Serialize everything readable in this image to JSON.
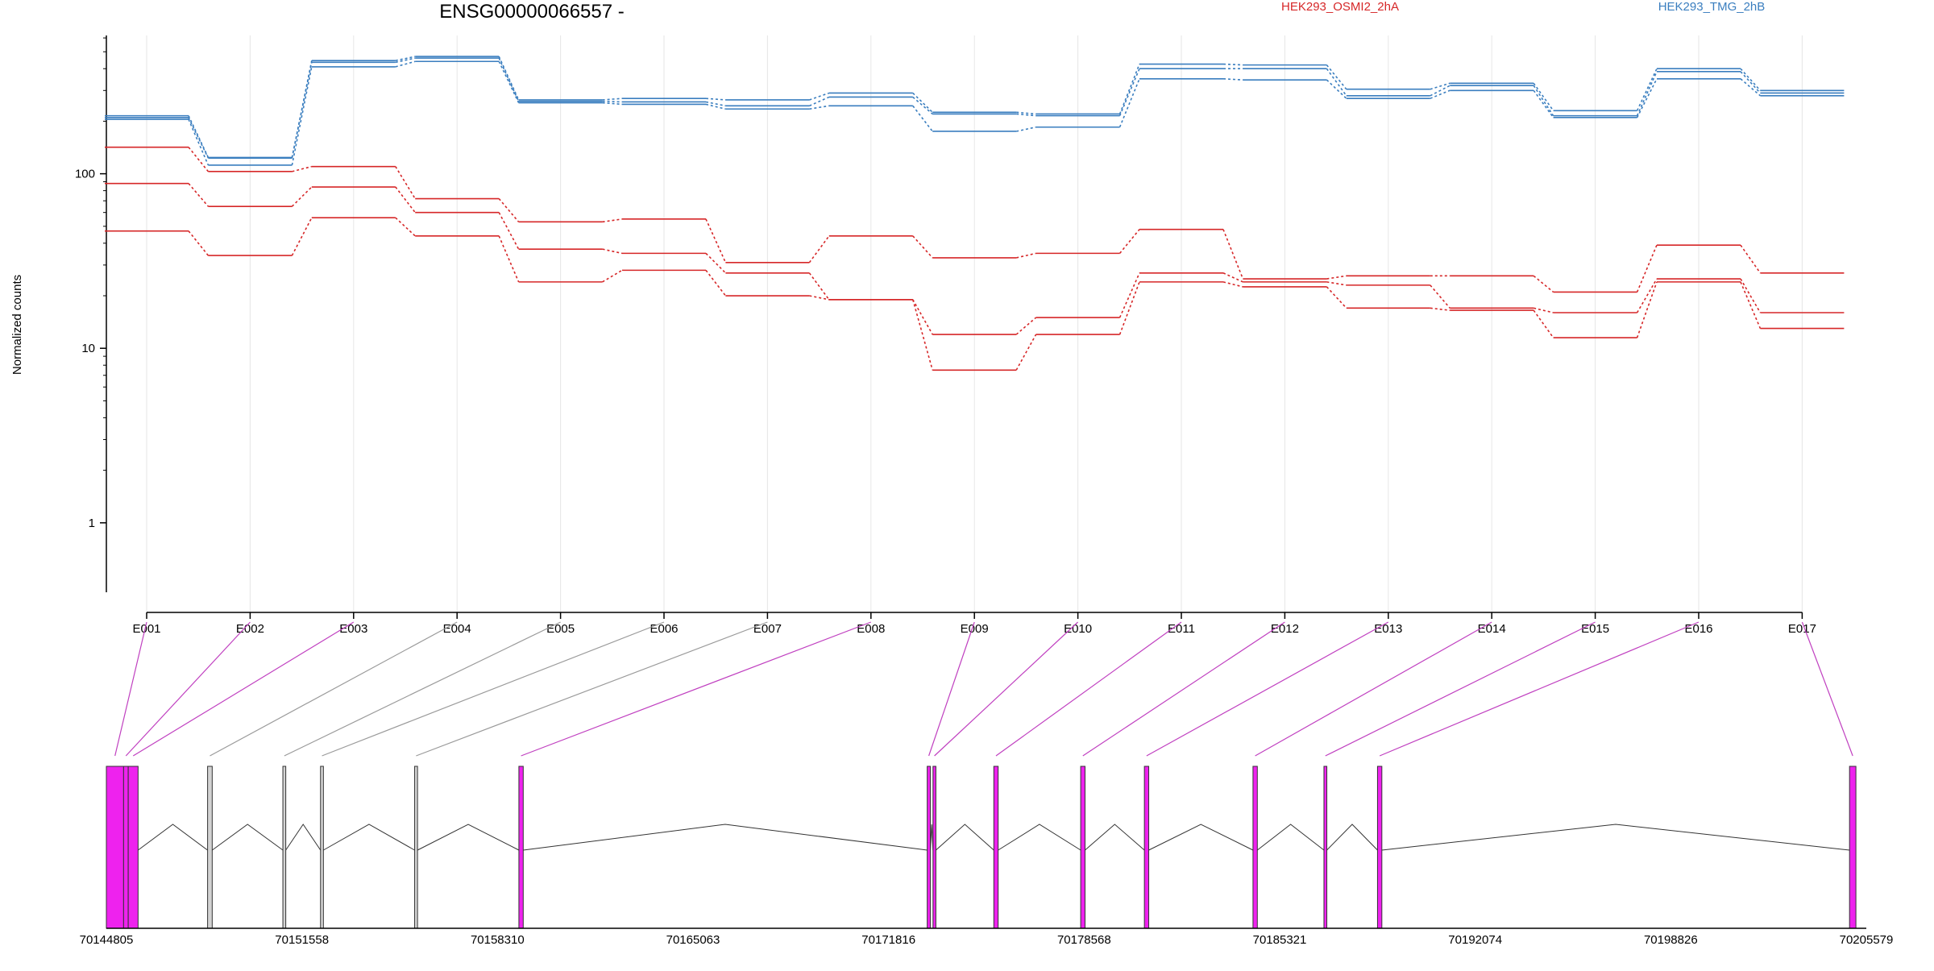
{
  "chart_data": {
    "type": "line",
    "title": "ENSG00000066557 -",
    "ylabel": "Normalized counts",
    "yscale": "log",
    "ylim": [
      0.4,
      620
    ],
    "yticks": [
      1,
      10,
      100
    ],
    "ytick_labels": [
      "1",
      "10",
      "100"
    ],
    "categories": [
      "E001",
      "E002",
      "E003",
      "E004",
      "E005",
      "E006",
      "E007",
      "E008",
      "E009",
      "E010",
      "E011",
      "E012",
      "E013",
      "E014",
      "E015",
      "E016",
      "E017"
    ],
    "legend": [
      {
        "name": "HEK293_OSMI2_2hA",
        "color": "#d62728"
      },
      {
        "name": "HEK293_TMG_2hB",
        "color": "#3a7ebf"
      }
    ],
    "series": [
      {
        "group": "HEK293_TMG_2hB",
        "color": "#3a7ebf",
        "values": [
          215,
          124,
          445,
          470,
          265,
          270,
          265,
          290,
          225,
          220,
          425,
          420,
          305,
          330,
          230,
          400,
          300
        ]
      },
      {
        "group": "HEK293_TMG_2hB",
        "color": "#3a7ebf",
        "values": [
          210,
          123,
          435,
          460,
          260,
          258,
          245,
          275,
          220,
          215,
          400,
          400,
          280,
          320,
          215,
          385,
          290
        ]
      },
      {
        "group": "HEK293_TMG_2hB",
        "color": "#3a7ebf",
        "values": [
          205,
          112,
          410,
          440,
          255,
          250,
          235,
          245,
          175,
          185,
          350,
          345,
          270,
          300,
          210,
          350,
          280
        ]
      },
      {
        "group": "HEK293_OSMI2_2hA",
        "color": "#d62728",
        "values": [
          142,
          103,
          110,
          72,
          53,
          55,
          31,
          44,
          33,
          35,
          48,
          25,
          26,
          26,
          21,
          39,
          27
        ]
      },
      {
        "group": "HEK293_OSMI2_2hA",
        "color": "#d62728",
        "values": [
          88,
          65,
          84,
          60,
          37,
          35,
          27,
          19,
          12,
          15,
          27,
          24,
          23,
          17,
          16,
          25,
          16
        ]
      },
      {
        "group": "HEK293_OSMI2_2hA",
        "color": "#d62728",
        "values": [
          47,
          34,
          56,
          44,
          24,
          28,
          20,
          19,
          7.5,
          12,
          24,
          22.5,
          17,
          16.5,
          11.5,
          24,
          13
        ]
      }
    ],
    "gene_model": {
      "xlim": [
        70144805,
        70205579
      ],
      "xticks": [
        "70144805",
        "70151558",
        "70158310",
        "70165063",
        "70171816",
        "70178568",
        "70185321",
        "70192074",
        "70198826",
        "70205579"
      ],
      "exon_fill_colors": {
        "tested": "#ee22ee",
        "untested": "#d3d3d3"
      },
      "connector_colors": {
        "tested": "#c040c0",
        "untested": "#9a9a9a"
      },
      "exons": [
        {
          "id": "E001",
          "start": 70144805,
          "end": 70145400,
          "tested": true
        },
        {
          "id": "E002",
          "start": 70145400,
          "end": 70145560,
          "tested": true
        },
        {
          "id": "E003",
          "start": 70145560,
          "end": 70145900,
          "tested": true
        },
        {
          "id": "E004",
          "start": 70148300,
          "end": 70148460,
          "tested": false
        },
        {
          "id": "E005",
          "start": 70150900,
          "end": 70151000,
          "tested": false
        },
        {
          "id": "E006",
          "start": 70152200,
          "end": 70152300,
          "tested": false
        },
        {
          "id": "E007",
          "start": 70155450,
          "end": 70155550,
          "tested": false
        },
        {
          "id": "E008",
          "start": 70159050,
          "end": 70159200,
          "tested": true
        },
        {
          "id": "E009",
          "start": 70173150,
          "end": 70173260,
          "tested": true
        },
        {
          "id": "E010",
          "start": 70173350,
          "end": 70173450,
          "tested": true
        },
        {
          "id": "E011",
          "start": 70175450,
          "end": 70175600,
          "tested": true
        },
        {
          "id": "E012",
          "start": 70178450,
          "end": 70178600,
          "tested": true
        },
        {
          "id": "E013",
          "start": 70180650,
          "end": 70180800,
          "tested": true
        },
        {
          "id": "E014",
          "start": 70184400,
          "end": 70184550,
          "tested": true
        },
        {
          "id": "E015",
          "start": 70186850,
          "end": 70186950,
          "tested": true
        },
        {
          "id": "E016",
          "start": 70188700,
          "end": 70188850,
          "tested": true
        },
        {
          "id": "E017",
          "start": 70205000,
          "end": 70205220,
          "tested": true
        }
      ],
      "introns": [
        [
          70145900,
          70148300
        ],
        [
          70148460,
          70150900
        ],
        [
          70151000,
          70152200
        ],
        [
          70152300,
          70155450
        ],
        [
          70155550,
          70159050
        ],
        [
          70159200,
          70173150
        ],
        [
          70173260,
          70173350
        ],
        [
          70173450,
          70175450
        ],
        [
          70175600,
          70178450
        ],
        [
          70178600,
          70180650
        ],
        [
          70180800,
          70184400
        ],
        [
          70184550,
          70186850
        ],
        [
          70186950,
          70188700
        ],
        [
          70188850,
          70205000
        ]
      ]
    }
  }
}
